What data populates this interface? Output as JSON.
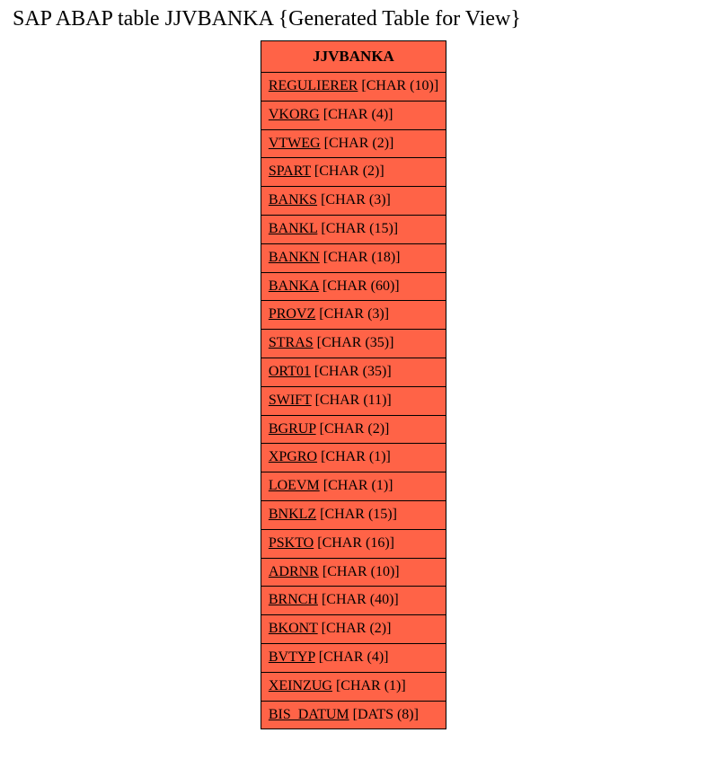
{
  "title": "SAP ABAP table JJVBANKA {Generated Table for View}",
  "table": {
    "name": "JJVBANKA",
    "header_bg": "#ff6347",
    "row_bg": "#ff6347",
    "border_color": "#000000",
    "title_color": "#000000",
    "text_color": "#000000",
    "title_fontsize": 24,
    "header_fontsize": 17,
    "row_fontsize": 16,
    "fields": [
      {
        "name": "REGULIERER",
        "type": "[CHAR (10)]"
      },
      {
        "name": "VKORG",
        "type": "[CHAR (4)]"
      },
      {
        "name": "VTWEG",
        "type": "[CHAR (2)]"
      },
      {
        "name": "SPART",
        "type": "[CHAR (2)]"
      },
      {
        "name": "BANKS",
        "type": "[CHAR (3)]"
      },
      {
        "name": "BANKL",
        "type": "[CHAR (15)]"
      },
      {
        "name": "BANKN",
        "type": "[CHAR (18)]"
      },
      {
        "name": "BANKA",
        "type": "[CHAR (60)]"
      },
      {
        "name": "PROVZ",
        "type": "[CHAR (3)]"
      },
      {
        "name": "STRAS",
        "type": "[CHAR (35)]"
      },
      {
        "name": "ORT01",
        "type": "[CHAR (35)]"
      },
      {
        "name": "SWIFT",
        "type": "[CHAR (11)]"
      },
      {
        "name": "BGRUP",
        "type": "[CHAR (2)]"
      },
      {
        "name": "XPGRO",
        "type": "[CHAR (1)]"
      },
      {
        "name": "LOEVM",
        "type": "[CHAR (1)]"
      },
      {
        "name": "BNKLZ",
        "type": "[CHAR (15)]"
      },
      {
        "name": "PSKTO",
        "type": "[CHAR (16)]"
      },
      {
        "name": "ADRNR",
        "type": "[CHAR (10)]"
      },
      {
        "name": "BRNCH",
        "type": "[CHAR (40)]"
      },
      {
        "name": "BKONT",
        "type": "[CHAR (2)]"
      },
      {
        "name": "BVTYP",
        "type": "[CHAR (4)]"
      },
      {
        "name": "XEINZUG",
        "type": "[CHAR (1)]"
      },
      {
        "name": "BIS_DATUM",
        "type": "[DATS (8)]"
      }
    ]
  }
}
